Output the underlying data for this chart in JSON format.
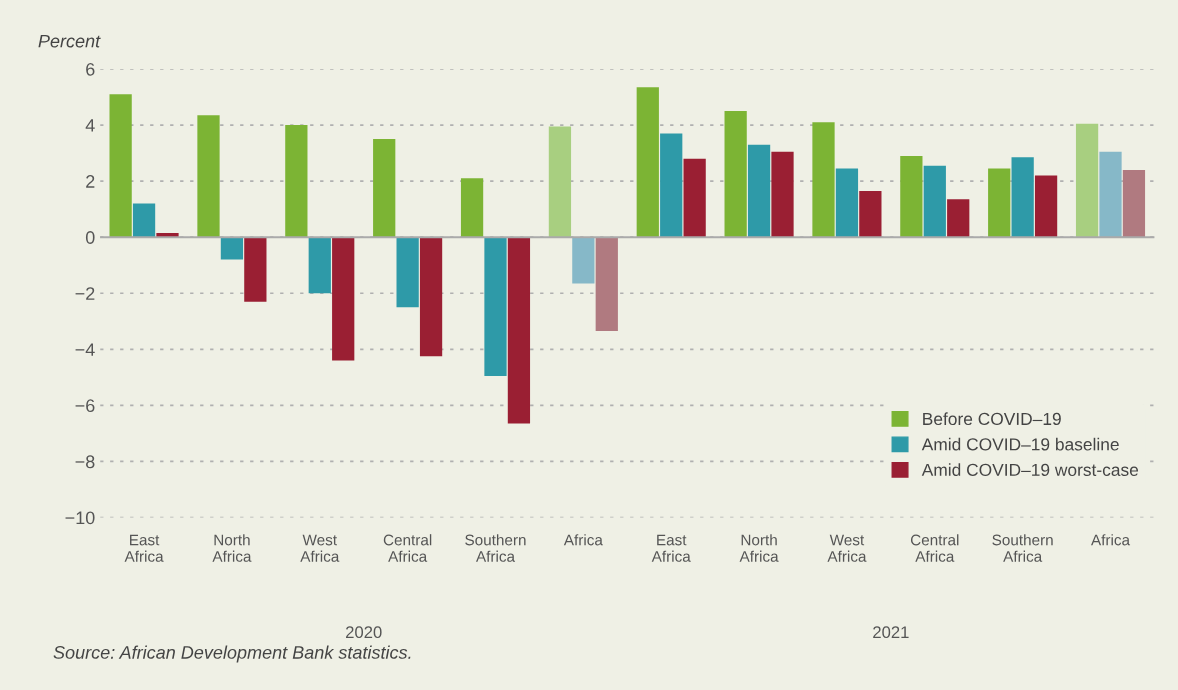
{
  "chart_data": {
    "type": "bar",
    "ylabel": "Percent",
    "categories": [
      "East Africa",
      "North Africa",
      "West Africa",
      "Central Africa",
      "Southern Africa",
      "Africa",
      "East Africa",
      "North Africa",
      "West Africa",
      "Central Africa",
      "Southern Africa",
      "Africa"
    ],
    "series": [
      {
        "name": "Before COVID–19",
        "color": "#7cb434",
        "colors": [
          "#7cb434",
          "#7cb434",
          "#7cb434",
          "#7cb434",
          "#7cb434",
          "#a8cf80",
          "#7cb434",
          "#7cb434",
          "#7cb434",
          "#7cb434",
          "#7cb434",
          "#a8cf80"
        ],
        "values": [
          5.1,
          4.35,
          4.0,
          3.5,
          2.1,
          3.95,
          5.35,
          4.5,
          4.1,
          2.9,
          2.45,
          4.05
        ]
      },
      {
        "name": "Amid COVID–19 baseline",
        "color": "#2e9aa8",
        "colors": [
          "#2e9aa8",
          "#2e9aa8",
          "#2e9aa8",
          "#2e9aa8",
          "#2e9aa8",
          "#86b8c8",
          "#2e9aa8",
          "#2e9aa8",
          "#2e9aa8",
          "#2e9aa8",
          "#2e9aa8",
          "#86b8c8"
        ],
        "values": [
          1.2,
          -0.8,
          -2.0,
          -2.5,
          -4.95,
          -1.65,
          3.7,
          3.3,
          2.45,
          2.55,
          2.85,
          3.05
        ]
      },
      {
        "name": "Amid COVID–19 worst-case",
        "color": "#9a1f33",
        "colors": [
          "#9a1f33",
          "#9a1f33",
          "#9a1f33",
          "#9a1f33",
          "#9a1f33",
          "#b07a80",
          "#9a1f33",
          "#9a1f33",
          "#9a1f33",
          "#9a1f33",
          "#9a1f33",
          "#b07a80"
        ],
        "values": [
          0.15,
          -2.3,
          -4.4,
          -4.25,
          -6.65,
          -3.35,
          2.8,
          3.05,
          1.65,
          1.35,
          2.2,
          2.4
        ]
      }
    ],
    "ylim": [
      -10,
      6
    ],
    "yticks": [
      {
        "value": -10,
        "label": "−10"
      },
      {
        "value": -8,
        "label": "−8"
      },
      {
        "value": -6,
        "label": "−6"
      },
      {
        "value": -4,
        "label": "−4"
      },
      {
        "value": -2,
        "label": "−2"
      },
      0,
      2,
      4,
      6
    ],
    "ref_lines": [
      {
        "axis": "y",
        "value": 0,
        "color": "#aaaaaa",
        "line_style": "solid"
      }
    ],
    "grid": "y",
    "legend": "bottom right",
    "annotations": [
      "2020",
      "2021",
      "Source: African Development Bank statistics."
    ]
  }
}
